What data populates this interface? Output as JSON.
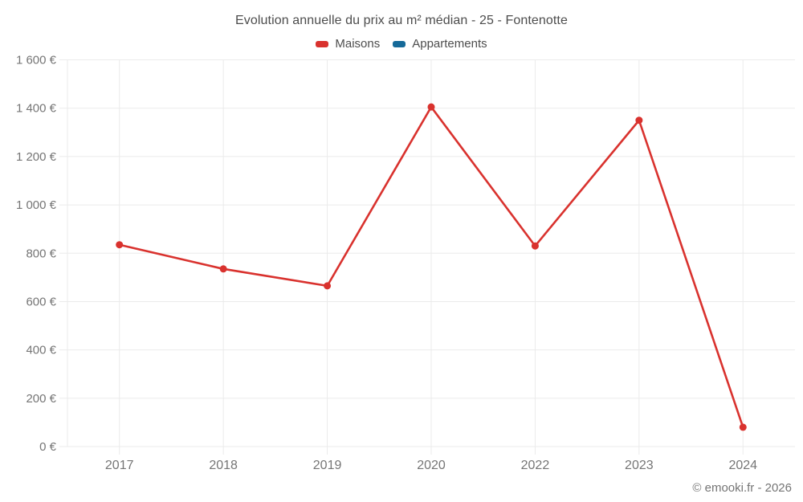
{
  "header": {
    "title": "Evolution annuelle du prix au m² médian - 25 - Fontenotte"
  },
  "legend": {
    "items": [
      {
        "label": "Maisons",
        "color": "#d9322e"
      },
      {
        "label": "Appartements",
        "color": "#156a99"
      }
    ]
  },
  "footer": {
    "credit": "© emooki.fr - 2026"
  },
  "colors": {
    "grid": "#ebebeb",
    "axis_text": "#757575",
    "title_text": "#4d4d4d",
    "maisons_red": "#d9322e",
    "appartements_blue": "#156a99"
  },
  "chart_data": {
    "type": "line",
    "title": "Evolution annuelle du prix au m² médian - 25 - Fontenotte",
    "categories": [
      "2017",
      "2018",
      "2019",
      "2020",
      "2022",
      "2023",
      "2024"
    ],
    "series": [
      {
        "name": "Maisons",
        "color": "#d9322e",
        "values": [
          835,
          735,
          665,
          1405,
          830,
          1350,
          80
        ]
      },
      {
        "name": "Appartements",
        "color": "#156a99",
        "values": []
      }
    ],
    "xlabel": "",
    "ylabel": "",
    "ylim": [
      0,
      1600
    ],
    "ytick_step": 200,
    "ytick_labels": [
      "0 €",
      "200 €",
      "400 €",
      "600 €",
      "800 €",
      "1 000 €",
      "1 200 €",
      "1 400 €",
      "1 600 €"
    ],
    "ytick_unit": "€",
    "grid": true,
    "legend_position": "top",
    "marker": "circle"
  }
}
